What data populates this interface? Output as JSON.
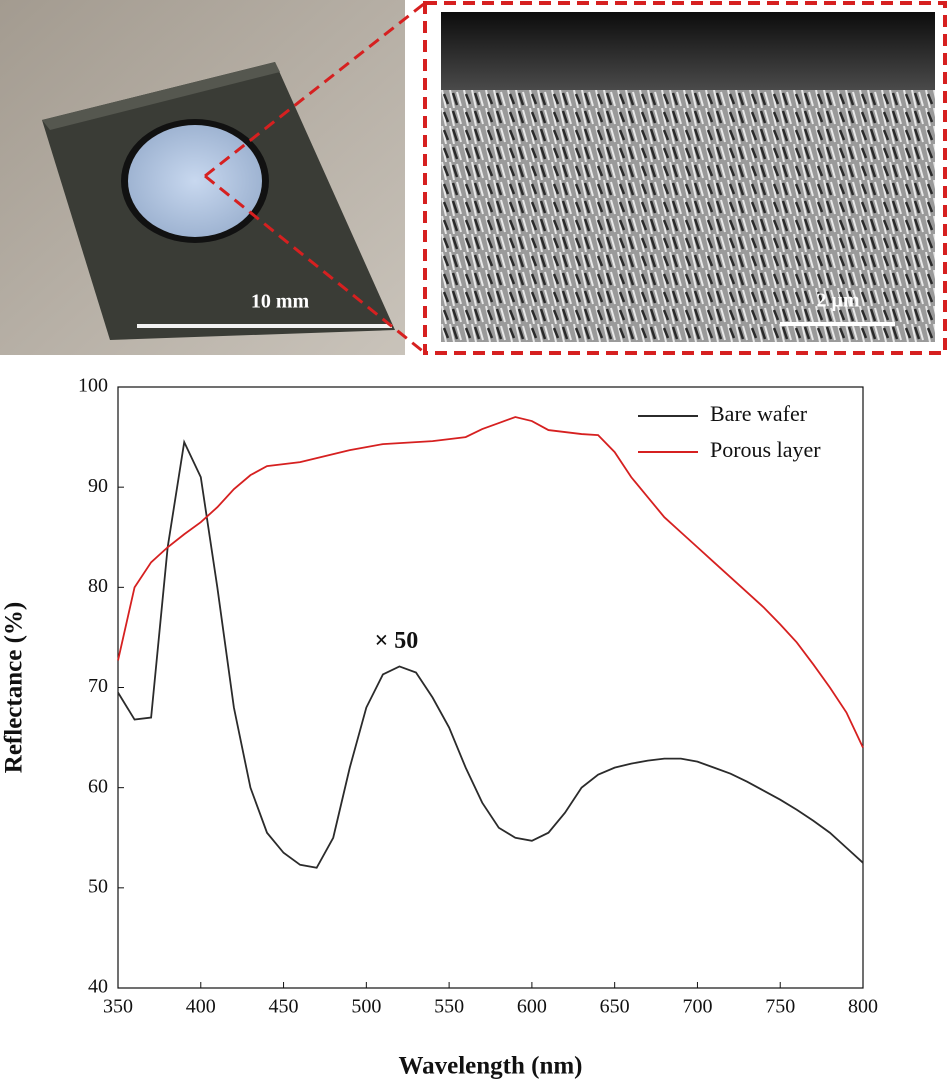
{
  "photo": {
    "scale_bar": "10 mm"
  },
  "sem": {
    "scale_bar": "2 μm"
  },
  "chart_data": {
    "type": "line",
    "x_label": "Wavelength (nm)",
    "y_label": "Reflectance (%)",
    "annotation": "× 50",
    "x": [
      350,
      360,
      370,
      380,
      390,
      400,
      410,
      420,
      430,
      440,
      450,
      460,
      470,
      480,
      490,
      500,
      510,
      520,
      530,
      540,
      550,
      560,
      570,
      580,
      590,
      600,
      610,
      620,
      630,
      640,
      650,
      660,
      670,
      680,
      690,
      700,
      710,
      720,
      730,
      740,
      750,
      760,
      770,
      780,
      790,
      800
    ],
    "series": [
      {
        "name": "Bare wafer",
        "color": "#2b2b2b",
        "values": [
          69.5,
          66.8,
          67,
          84,
          94.5,
          91,
          80,
          68,
          60,
          55.5,
          53.5,
          52.3,
          52,
          55,
          62,
          68,
          71.3,
          72.1,
          71.5,
          69,
          66,
          62,
          58.5,
          56,
          55,
          54.7,
          55.5,
          57.5,
          60,
          61.3,
          62,
          62.4,
          62.7,
          62.9,
          62.9,
          62.6,
          62,
          61.4,
          60.6,
          59.7,
          58.8,
          57.8,
          56.7,
          55.5,
          54,
          52.5
        ]
      },
      {
        "name": "Porous layer",
        "color": "#d62020",
        "values": [
          72.7,
          80,
          82.5,
          84,
          85.3,
          86.5,
          88,
          89.8,
          91.2,
          92.1,
          92.3,
          92.5,
          92.9,
          93.3,
          93.7,
          94,
          94.3,
          94.4,
          94.5,
          94.6,
          94.8,
          95,
          95.8,
          96.4,
          97,
          96.6,
          95.7,
          95.5,
          95.3,
          95.2,
          93.5,
          91,
          89,
          87,
          85.5,
          84,
          82.5,
          81,
          79.5,
          78,
          76.3,
          74.5,
          72.3,
          70,
          67.5,
          64
        ]
      }
    ],
    "xlim": [
      350,
      800
    ],
    "ylim": [
      40,
      100
    ],
    "xticks": [
      350,
      400,
      450,
      500,
      550,
      600,
      650,
      700,
      750,
      800
    ],
    "yticks": [
      40,
      50,
      60,
      70,
      80,
      90,
      100
    ],
    "legend": "top-right"
  }
}
